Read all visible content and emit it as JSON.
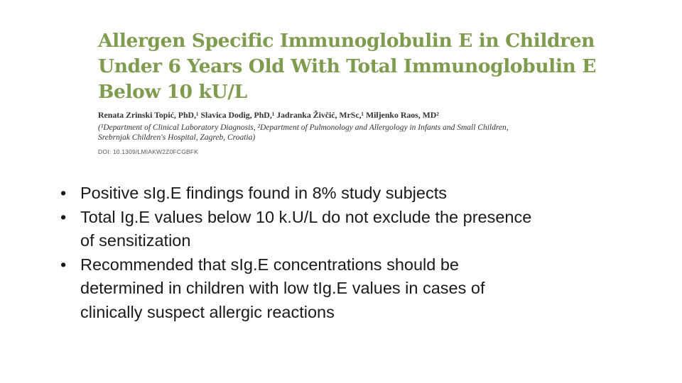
{
  "paper": {
    "title_lines": [
      "Allergen Specific Immunoglobulin E in Children",
      "Under 6 Years Old With Total Immunoglobulin E",
      "Below 10 kU/L"
    ],
    "authors": "Renata Zrinski Topić, PhD,¹ Slavica Dodig, PhD,¹ Jadranka Živčić, MrSc,¹ Miljenko Raos, MD²",
    "affiliation_lines": [
      "(¹Department of Clinical Laboratory Diagnosis, ²Department of Pulmonology and Allergology in Infants and Small Children,",
      "Srebrnjak Children's Hospital, Zagreb, Croatia)"
    ],
    "doi": "DOI: 10.1309/LMIAKW2Z0FCGBFK"
  },
  "bullets": [
    {
      "mark": "•",
      "lines": [
        "Positive sIg.E findings found in 8% study subjects"
      ]
    },
    {
      "mark": "•",
      "lines": [
        "Total Ig.E values below 10 k.U/L do not exclude the presence",
        "of sensitization"
      ]
    },
    {
      "mark": "•",
      "lines": [
        "Recommended that sIg.E concentrations should be",
        "determined in children with low tIg.E values in cases of",
        "clinically suspect allergic reactions"
      ]
    }
  ]
}
